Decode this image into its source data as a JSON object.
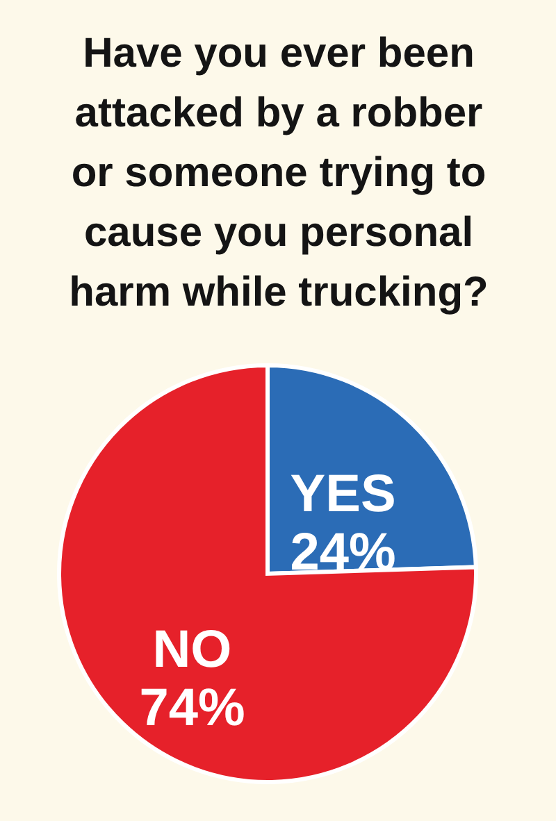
{
  "chart_data": {
    "type": "pie",
    "title": "Have you ever been attacked by a robber or someone trying to cause you personal harm while trucking?",
    "categories": [
      "YES",
      "NO"
    ],
    "values": [
      24,
      74
    ],
    "colors": [
      "#2b6cb6",
      "#e6212a"
    ],
    "value_labels": [
      "24%",
      "74%"
    ]
  }
}
